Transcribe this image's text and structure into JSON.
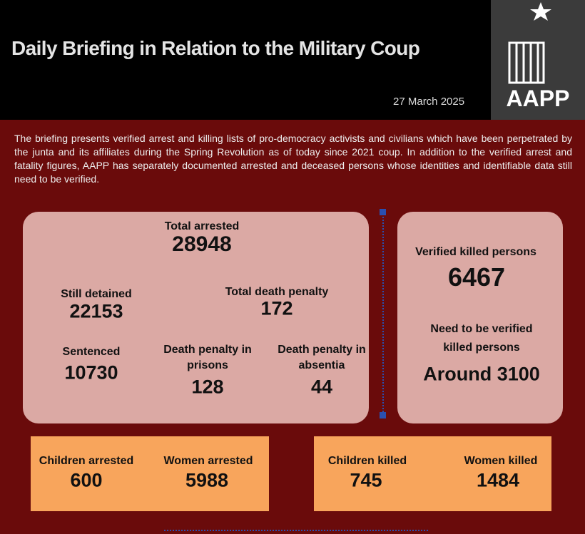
{
  "header": {
    "title": "Daily Briefing in Relation to the Military Coup",
    "date": "27 March 2025"
  },
  "logo": {
    "text": "AAPP"
  },
  "intro": "The briefing presents verified arrest and killing lists of pro-democracy activists and civilians which have been perpetrated by the junta and its affiliates during the Spring Revolution as of today since 2021 coup. In addition to the verified arrest and fatality figures, AAPP has separately documented arrested and deceased persons whose identities and identifiable data still need to be verified.",
  "arrests": {
    "total": {
      "label": "Total arrested",
      "value": 28948
    },
    "detained": {
      "label": "Still detained",
      "value": 22153
    },
    "death_penalty": {
      "label": "Total death penalty",
      "value": 172
    },
    "sentenced": {
      "label": "Sentenced",
      "value": 10730
    },
    "death_prison": {
      "label": "Death penalty in prisons",
      "value": 128
    },
    "death_absentia": {
      "label": "Death penalty in absentia",
      "value": 44
    }
  },
  "killed": {
    "verified": {
      "label": "Verified killed persons",
      "value": 6467
    },
    "unverified": {
      "label": "Need to be verified killed persons",
      "value": "Around 3100"
    }
  },
  "boxes": {
    "children_arrested": {
      "label": "Children arrested",
      "value": 600
    },
    "women_arrested": {
      "label": "Women arrested",
      "value": 5988
    },
    "children_killed": {
      "label": "Children killed",
      "value": 745
    },
    "women_killed": {
      "label": "Women killed",
      "value": 1484
    }
  }
}
